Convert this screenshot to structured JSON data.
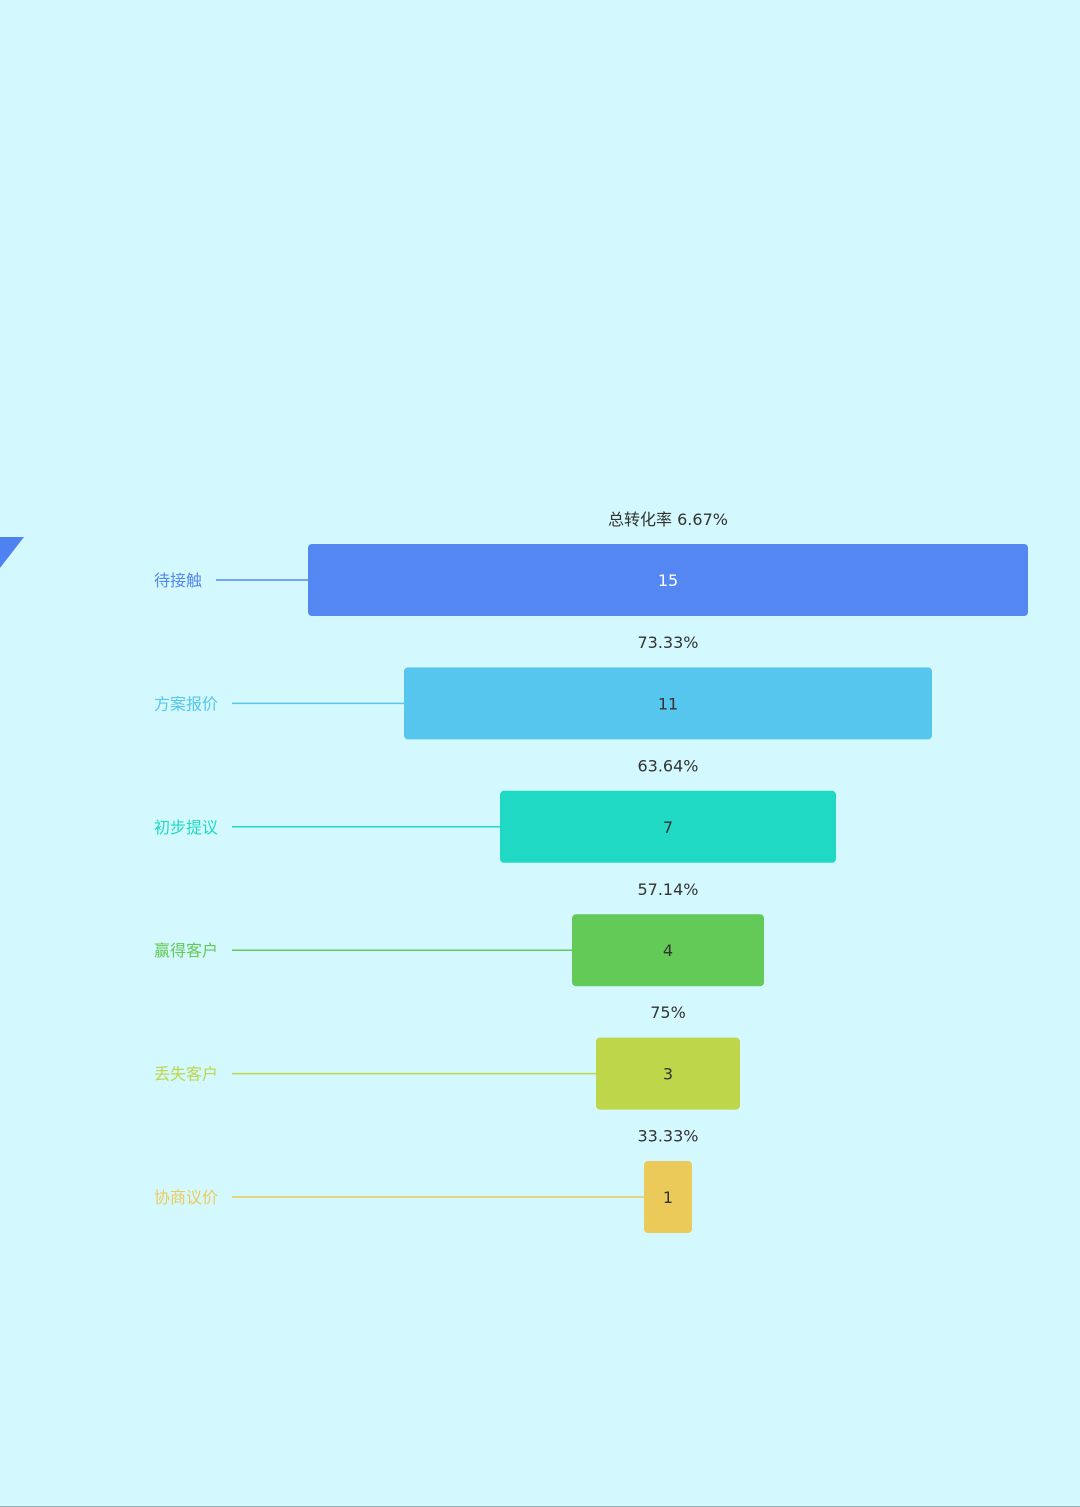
{
  "chart_data": {
    "type": "funnel",
    "total_conversion_label": "总转化率 6.67%",
    "stages": [
      {
        "label": "待接触",
        "value": 15,
        "color": "#5587f2"
      },
      {
        "label": "方案报价",
        "value": 11,
        "color": "#56c6ee"
      },
      {
        "label": "初步提议",
        "value": 7,
        "color": "#1fd9c4"
      },
      {
        "label": "赢得客户",
        "value": 4,
        "color": "#63c957"
      },
      {
        "label": "丢失客户",
        "value": 3,
        "color": "#bed649"
      },
      {
        "label": "协商议价",
        "value": 1,
        "color": "#ecca59"
      }
    ],
    "conversion_rates": [
      "73.33%",
      "63.64%",
      "57.14%",
      "75%",
      "33.33%"
    ],
    "max_value": 15
  },
  "colors": {
    "background": "#d3f8fd",
    "text": "#333333",
    "corner_mark": "#4f82f1"
  },
  "icons": {
    "corner_mark": "triangle-corner-icon"
  }
}
